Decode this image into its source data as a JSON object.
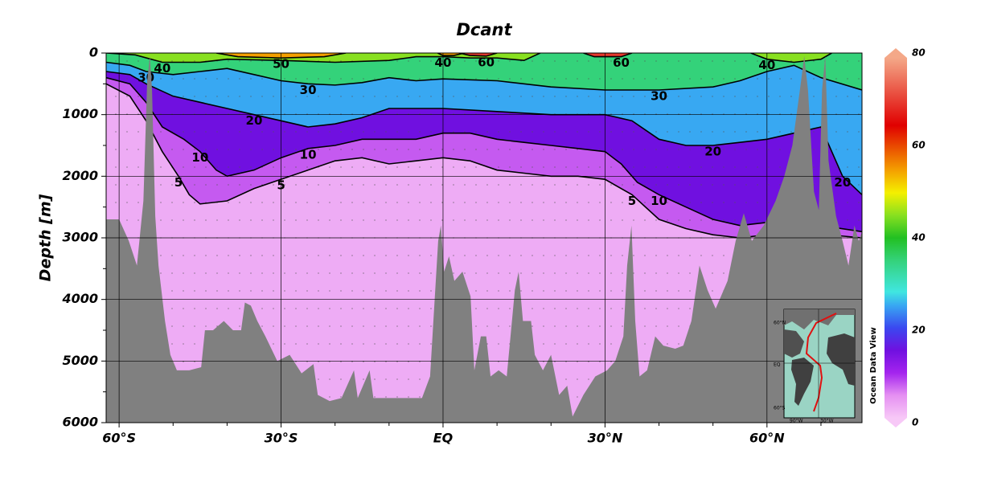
{
  "chart_data": {
    "type": "section",
    "title": "Dcant",
    "ylabel": "Depth [m]",
    "xlim": [
      -62.4,
      77.6
    ],
    "xticks": [
      {
        "value": -60,
        "label": "60°S"
      },
      {
        "value": -30,
        "label": "30°S"
      },
      {
        "value": 0,
        "label": "EQ"
      },
      {
        "value": 30,
        "label": "30°N"
      },
      {
        "value": 60,
        "label": "60°N"
      }
    ],
    "xminorticks": [
      -50,
      -40,
      -20,
      -10,
      10,
      20,
      40,
      50,
      70
    ],
    "ylim": [
      0,
      6000
    ],
    "y_inverted": true,
    "yticks": [
      0,
      1000,
      2000,
      3000,
      4000,
      5000,
      6000
    ],
    "yminorticks": [
      500,
      1500,
      2500,
      3500,
      4500,
      5500
    ],
    "grid": true,
    "clim": [
      0,
      80
    ],
    "cticks": [
      0,
      20,
      40,
      60,
      80
    ],
    "colorscale": [
      [
        0,
        "#f7c8f7"
      ],
      [
        5,
        "#e590f2"
      ],
      [
        10,
        "#a424ee"
      ],
      [
        15,
        "#7010e0"
      ],
      [
        20,
        "#3a48f0"
      ],
      [
        25,
        "#38a8f2"
      ],
      [
        28,
        "#40e6e0"
      ],
      [
        35,
        "#34d27a"
      ],
      [
        40,
        "#22c022"
      ],
      [
        45,
        "#88e020"
      ],
      [
        50,
        "#f4f000"
      ],
      [
        55,
        "#f4a000"
      ],
      [
        65,
        "#e00000"
      ],
      [
        80,
        "#f4a888"
      ]
    ],
    "contours": [
      {
        "level": 5,
        "lat": [
          -62.4,
          -58,
          -55,
          -52,
          -49,
          -47,
          -45,
          -40,
          -35,
          -30,
          -25,
          -20,
          -15,
          -10,
          -5,
          0,
          5,
          10,
          15,
          20,
          25,
          30,
          35,
          40,
          45,
          50,
          55,
          60,
          65,
          77.6
        ],
        "depth": [
          500,
          700,
          1100,
          1600,
          2000,
          2300,
          2450,
          2400,
          2200,
          2050,
          1900,
          1750,
          1700,
          1800,
          1750,
          1700,
          1750,
          1900,
          1950,
          2000,
          2000,
          2050,
          2300,
          2700,
          2850,
          2950,
          3000,
          2950,
          2900,
          3000
        ]
      },
      {
        "level": 10,
        "lat": [
          -62.4,
          -58,
          -55,
          -52,
          -48,
          -45,
          -42,
          -40,
          -35,
          -30,
          -25,
          -20,
          -15,
          -10,
          -5,
          0,
          5,
          10,
          15,
          20,
          25,
          30,
          33,
          36,
          40,
          45,
          50,
          55,
          60,
          65,
          70,
          77.6
        ],
        "depth": [
          400,
          500,
          800,
          1200,
          1400,
          1600,
          1900,
          2000,
          1900,
          1700,
          1550,
          1500,
          1400,
          1400,
          1400,
          1300,
          1300,
          1400,
          1450,
          1500,
          1550,
          1600,
          1800,
          2100,
          2300,
          2500,
          2700,
          2800,
          2750,
          2750,
          2800,
          2900
        ]
      },
      {
        "level": 20,
        "lat": [
          -62.4,
          -58,
          -55,
          -50,
          -45,
          -40,
          -35,
          -30,
          -25,
          -20,
          -15,
          -10,
          -5,
          0,
          10,
          20,
          30,
          35,
          40,
          45,
          50,
          55,
          60,
          65,
          70,
          74,
          77.6
        ],
        "depth": [
          300,
          350,
          500,
          700,
          800,
          900,
          1000,
          1100,
          1200,
          1150,
          1050,
          900,
          900,
          900,
          950,
          1000,
          1000,
          1100,
          1400,
          1500,
          1500,
          1450,
          1400,
          1300,
          1200,
          2000,
          2300
        ]
      },
      {
        "level": 30,
        "lat": [
          -62.4,
          -58,
          -55,
          -50,
          -45,
          -40,
          -35,
          -30,
          -25,
          -20,
          -15,
          -10,
          -5,
          0,
          10,
          20,
          30,
          40,
          50,
          55,
          60,
          65,
          70,
          77.6
        ],
        "depth": [
          150,
          200,
          300,
          350,
          300,
          250,
          350,
          450,
          500,
          520,
          480,
          400,
          450,
          420,
          450,
          550,
          600,
          600,
          550,
          450,
          300,
          200,
          400,
          600
        ]
      },
      {
        "level": 40,
        "lat": [
          -62.4,
          -57,
          -52,
          -45,
          -40,
          -30,
          -20,
          -10,
          -5,
          0,
          5,
          10,
          15,
          18,
          null,
          57,
          60,
          65,
          70,
          72
        ],
        "depth": [
          0,
          30,
          150,
          150,
          100,
          120,
          150,
          120,
          60,
          60,
          80,
          80,
          120,
          0,
          null,
          0,
          100,
          150,
          100,
          0
        ]
      },
      {
        "level": 50,
        "lat": [
          -42,
          -38,
          -30,
          -22,
          -18,
          null,
          -1,
          0,
          2,
          4
        ],
        "depth": [
          0,
          60,
          80,
          60,
          0,
          null,
          0,
          40,
          40,
          0
        ]
      },
      {
        "level": 60,
        "lat": [
          3,
          5,
          8,
          10,
          null,
          26,
          28,
          33,
          35
        ],
        "depth": [
          0,
          40,
          50,
          0,
          null,
          0,
          60,
          60,
          0
        ]
      }
    ],
    "bathymetry": {
      "lat": [
        -62.4,
        -60,
        -58.2,
        -56.7,
        -55.5,
        -54.8,
        -54.3,
        -53.9,
        -53.3,
        -52.7,
        -51.5,
        -50.5,
        -49.3,
        -47,
        -44.8,
        -44.1,
        -42.6,
        -40.6,
        -38.9,
        -37.4,
        -36.7,
        -35.6,
        -34.4,
        -32.9,
        -30.7,
        -28.4,
        -26.2,
        -24,
        -23.2,
        -21,
        -18.8,
        -16.5,
        -15.8,
        -13.6,
        -12.9,
        -10.6,
        -8.3,
        -6.1,
        -3.9,
        -2.4,
        -0.9,
        -0.4,
        0.2,
        1.1,
        2.1,
        3.6,
        5.1,
        5.8,
        7,
        8,
        8.8,
        10.3,
        11.8,
        13.3,
        14,
        14.8,
        16.3,
        17,
        18.5,
        20,
        21.5,
        23,
        24,
        26,
        28.2,
        30.4,
        31.9,
        33.4,
        34.1,
        34.9,
        35.6,
        36.4,
        37.8,
        39.3,
        40.8,
        43,
        44.5,
        46,
        47.5,
        49,
        50.5,
        52.7,
        54.2,
        55.7,
        57.2,
        59.4,
        61.6,
        63.2,
        64.7,
        66.1,
        66.9,
        67.6,
        68.7,
        69.6,
        70.2,
        70.8,
        71.4,
        72.8,
        74,
        75.1,
        76.2,
        77,
        77.6
      ],
      "depth": [
        2700,
        2700,
        3050,
        3450,
        2400,
        450,
        50,
        600,
        2650,
        3450,
        4350,
        4900,
        5150,
        5150,
        5100,
        4500,
        4500,
        4350,
        4500,
        4500,
        4050,
        4100,
        4350,
        4600,
        5000,
        4900,
        5200,
        5050,
        5550,
        5650,
        5600,
        5150,
        5600,
        5150,
        5600,
        5600,
        5600,
        5600,
        5600,
        5250,
        3050,
        2800,
        3550,
        3300,
        3700,
        3550,
        3950,
        5150,
        4600,
        4600,
        5250,
        5150,
        5250,
        3850,
        3550,
        4350,
        4350,
        4900,
        5150,
        4900,
        5550,
        5400,
        5900,
        5550,
        5250,
        5150,
        5000,
        4600,
        3450,
        2800,
        4350,
        5250,
        5150,
        4600,
        4750,
        4800,
        4750,
        4350,
        3450,
        3850,
        4150,
        3700,
        3050,
        2600,
        3050,
        2800,
        2400,
        2000,
        1500,
        600,
        50,
        600,
        2250,
        2550,
        600,
        50,
        1750,
        2650,
        3050,
        3450,
        2800,
        3050,
        2900
      ],
      "color": "#808080"
    },
    "inset": {
      "labels": [
        "60°N",
        "EQ",
        "60°S",
        "90°W",
        "30°W"
      ]
    },
    "credit": "Ocean Data View"
  }
}
